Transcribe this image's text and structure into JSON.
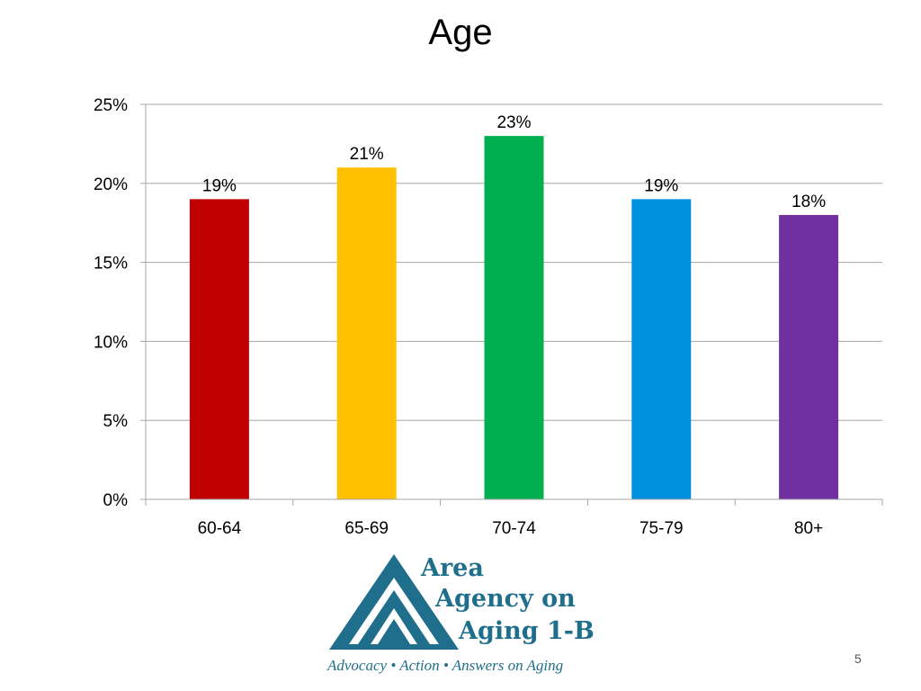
{
  "slide": {
    "title": "Age",
    "page_number": "5"
  },
  "logo": {
    "line1": "Area",
    "line2": "Agency on",
    "line3": "Aging 1-B",
    "tagline": "Advocacy • Action • Answers on Aging",
    "color": "#1f6e8c"
  },
  "chart_data": {
    "type": "bar",
    "title": "Age",
    "xlabel": "",
    "ylabel": "",
    "categories": [
      "60-64",
      "65-69",
      "70-74",
      "75-79",
      "80+"
    ],
    "values": [
      19,
      21,
      23,
      19,
      18
    ],
    "data_labels": [
      "19%",
      "21%",
      "23%",
      "19%",
      "18%"
    ],
    "colors": [
      "#c00000",
      "#ffc000",
      "#00b050",
      "#0090e0",
      "#7030a0"
    ],
    "ylim": [
      0,
      25
    ],
    "yticks": [
      0,
      5,
      10,
      15,
      20,
      25
    ],
    "ytick_labels": [
      "0%",
      "5%",
      "10%",
      "15%",
      "20%",
      "25%"
    ],
    "grid": true,
    "legend": "none"
  }
}
